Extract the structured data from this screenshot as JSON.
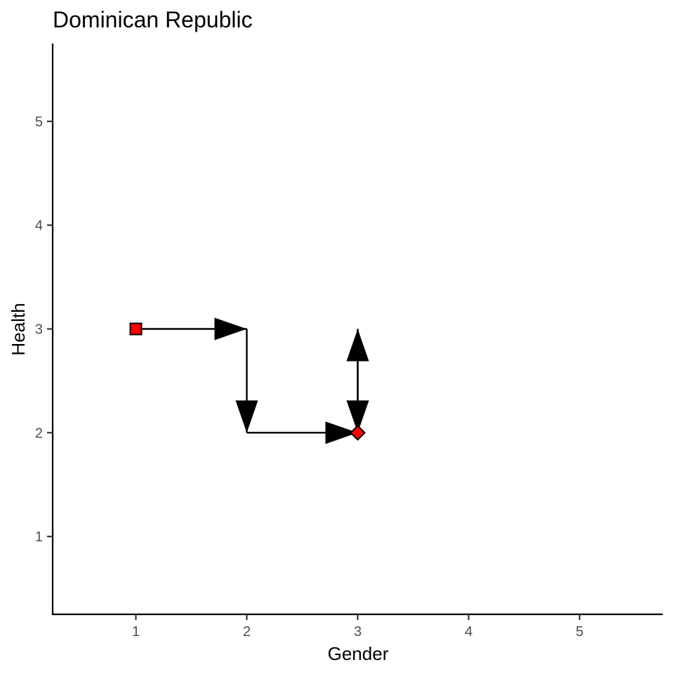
{
  "chart_data": {
    "type": "line",
    "title": "Dominican Republic",
    "xlabel": "Gender",
    "ylabel": "Health",
    "xlim": [
      0.25,
      5.75
    ],
    "ylim": [
      0.25,
      5.75
    ],
    "x_ticks": [
      1,
      2,
      3,
      4,
      5
    ],
    "y_ticks": [
      1,
      2,
      3,
      4,
      5
    ],
    "grid": false,
    "path": [
      {
        "x": 1,
        "y": 3
      },
      {
        "x": 2,
        "y": 3
      },
      {
        "x": 2,
        "y": 2
      },
      {
        "x": 3,
        "y": 2
      },
      {
        "x": 3,
        "y": 3
      },
      {
        "x": 3,
        "y": 2
      }
    ],
    "points": [
      {
        "x": 1,
        "y": 3,
        "shape": "square",
        "color": "#ff0000"
      },
      {
        "x": 3,
        "y": 2,
        "shape": "diamond",
        "color": "#ff0000"
      }
    ],
    "line_color": "#000000"
  }
}
